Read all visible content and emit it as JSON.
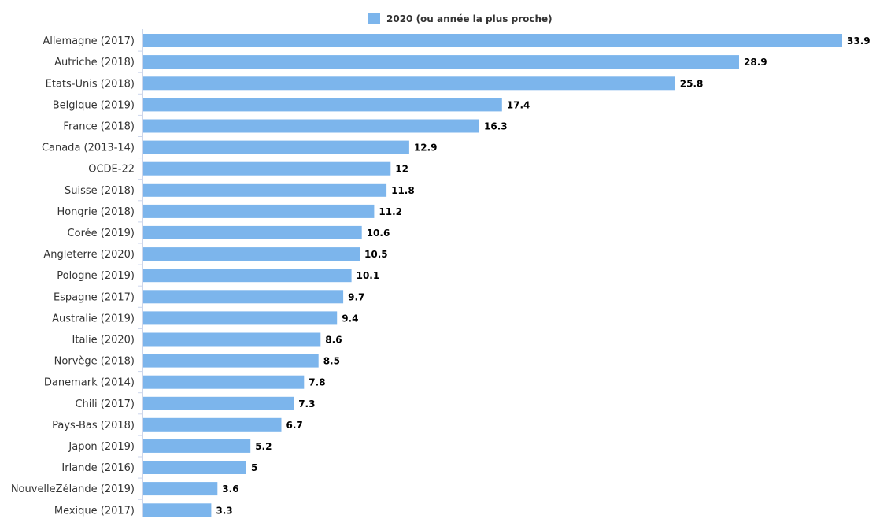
{
  "chart_data": {
    "type": "bar",
    "orientation": "horizontal",
    "categories": [
      "Allemagne (2017)",
      "Autriche (2018)",
      "Etats-Unis (2018)",
      "Belgique (2019)",
      "France (2018)",
      "Canada (2013-14)",
      "OCDE-22",
      "Suisse (2018)",
      "Hongrie (2018)",
      "Corée (2019)",
      "Angleterre (2020)",
      "Pologne (2019)",
      "Espagne (2017)",
      "Australie (2019)",
      "Italie (2020)",
      "Norvège (2018)",
      "Danemark (2014)",
      "Chili (2017)",
      "Pays-Bas (2018)",
      "Japon (2019)",
      "Irlande (2016)",
      "NouvelleZélande (2019)",
      "Mexique (2017)"
    ],
    "series": [
      {
        "name": "2020 (ou année la plus proche)",
        "color": "#7cb5ec",
        "values": [
          33.9,
          28.9,
          25.8,
          17.4,
          16.3,
          12.9,
          12,
          11.8,
          11.2,
          10.6,
          10.5,
          10.1,
          9.7,
          9.4,
          8.6,
          8.5,
          7.8,
          7.3,
          6.7,
          5.2,
          5,
          3.6,
          3.3
        ],
        "labels": [
          "33.9",
          "28.9",
          "25.8",
          "17.4",
          "16.3",
          "12.9",
          "12",
          "11.8",
          "11.2",
          "10.6",
          "10.5",
          "10.1",
          "9.7",
          "9.4",
          "8.6",
          "8.5",
          "7.8",
          "7.3",
          "6.7",
          "5.2",
          "5",
          "3.6",
          "3.3"
        ]
      }
    ],
    "xlim": [
      0,
      33.9
    ],
    "legend_position": "top-center",
    "grid": false
  }
}
